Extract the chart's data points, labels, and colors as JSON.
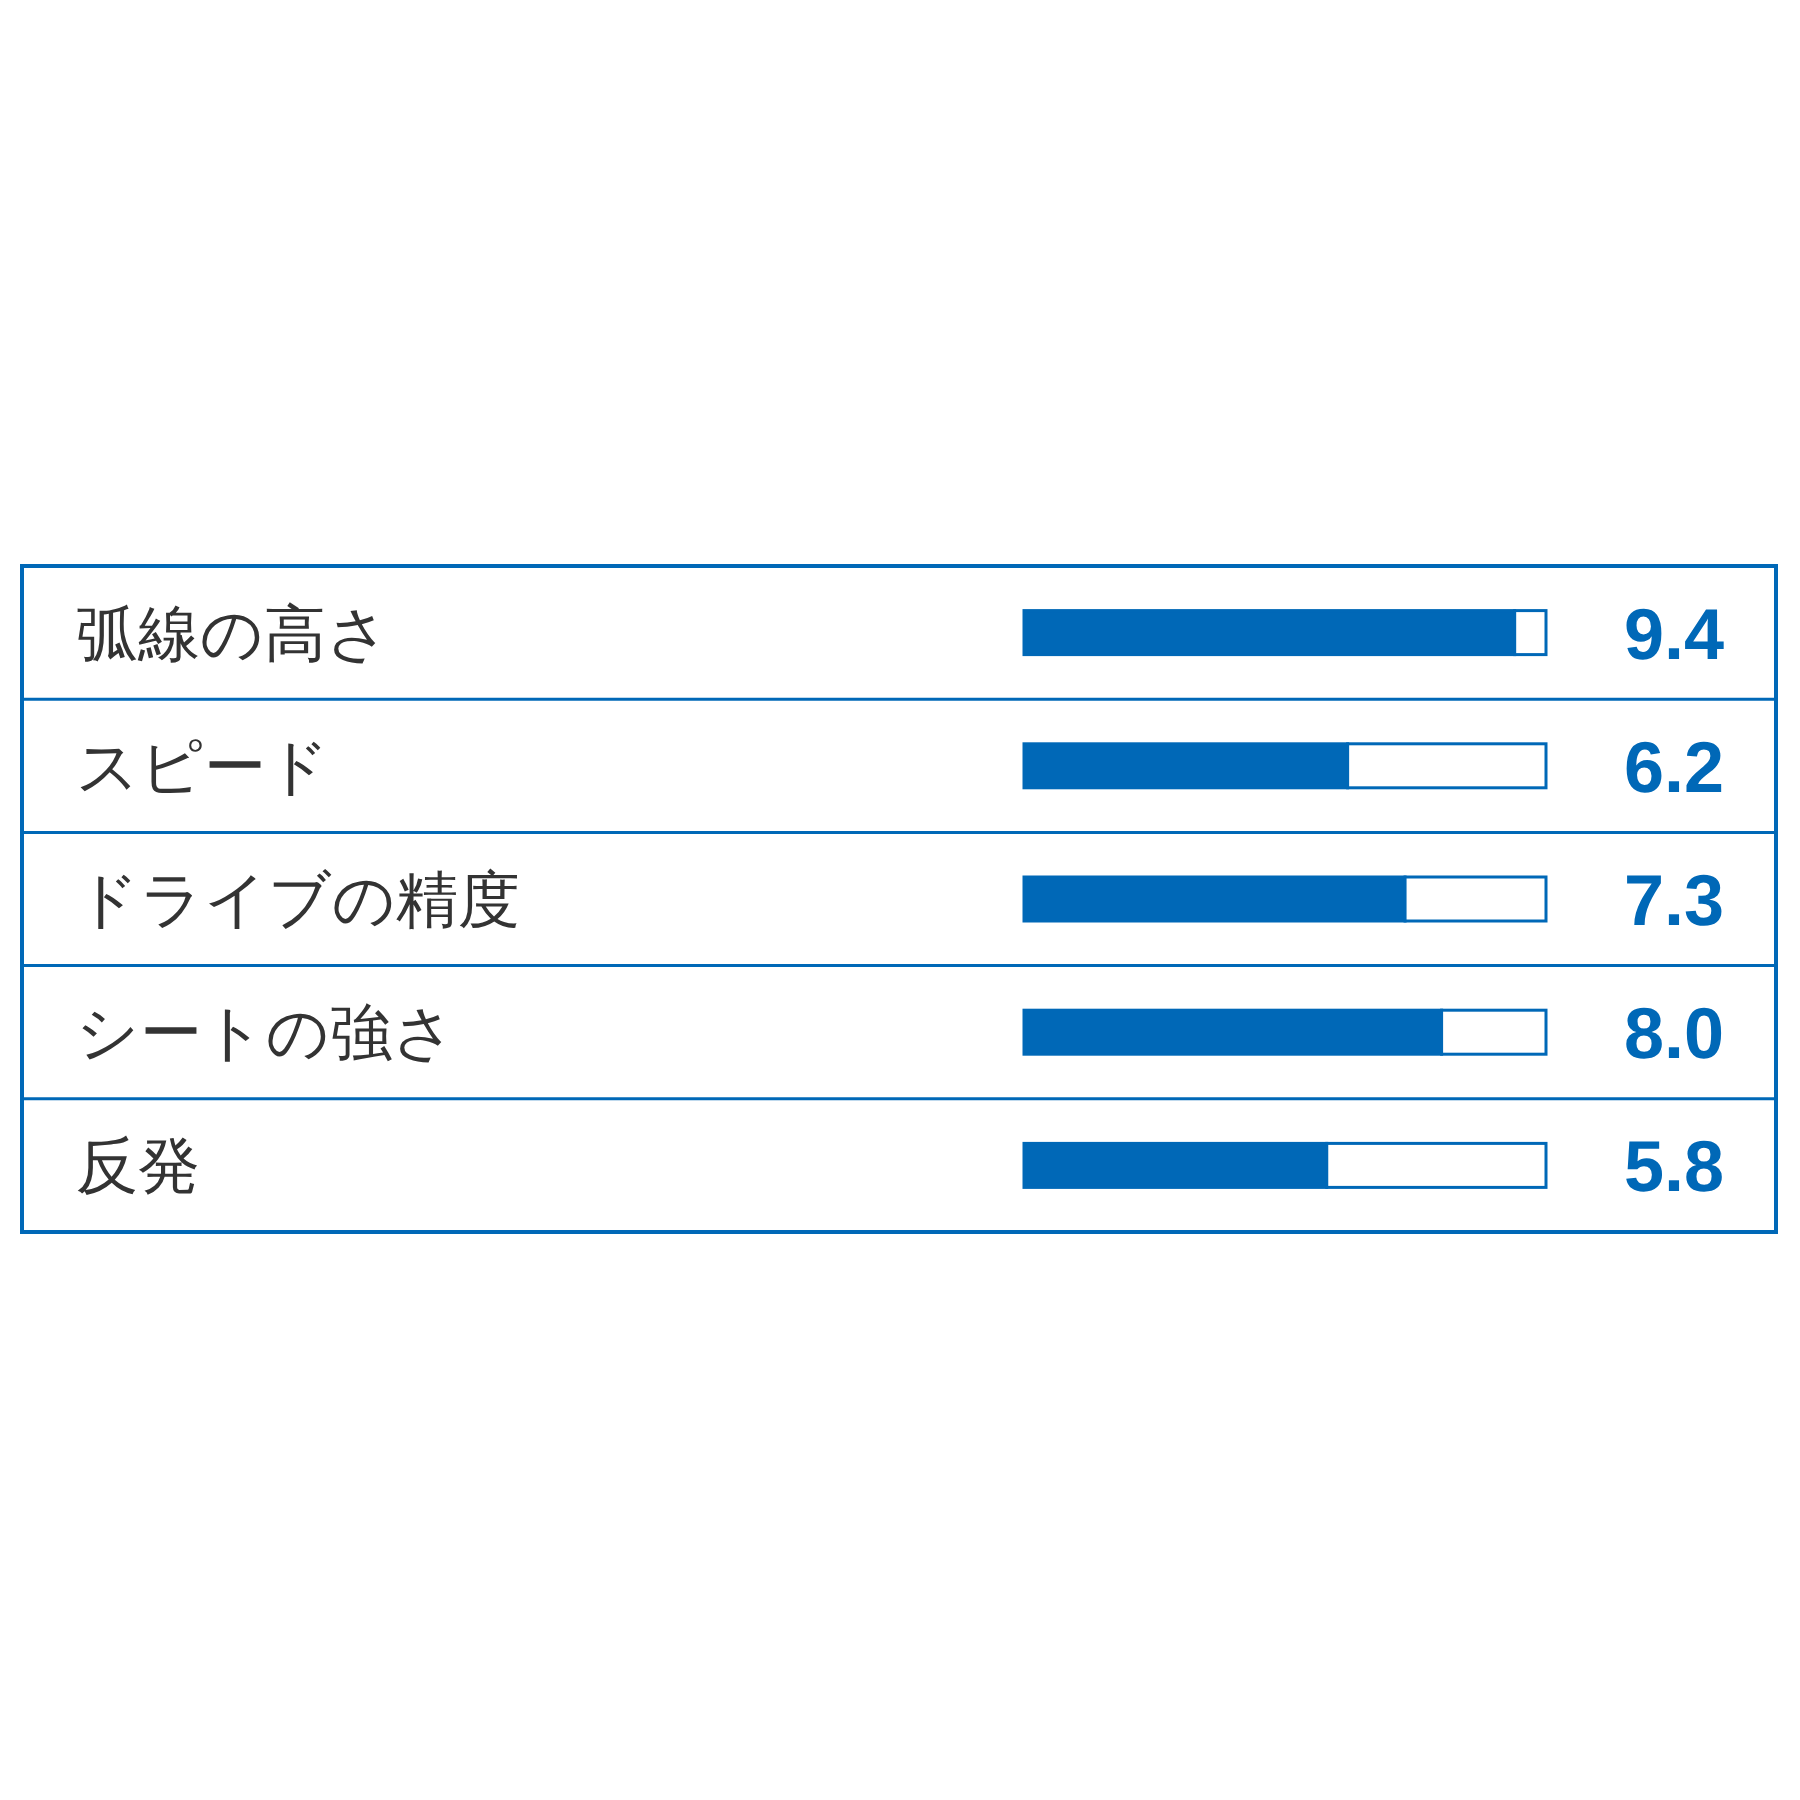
{
  "chart_data": {
    "type": "bar",
    "orientation": "horizontal",
    "stacked": true,
    "categories": [
      "弧線の高さ",
      "スピード",
      "ドライブの精度",
      "シートの強さ",
      "反発"
    ],
    "series": [
      {
        "color": "#0068b7",
        "values": [
          9.4,
          6.2,
          7.3,
          8.0,
          5.8
        ],
        "value_labels": [
          "9.4",
          "6.2",
          "7.3",
          "8.0",
          "5.8"
        ]
      },
      {
        "color": "#ffffff",
        "values": [
          0.6,
          3.8,
          2.7,
          2.0,
          4.2
        ]
      }
    ],
    "xlim": [
      0,
      10
    ],
    "tick_labels": "y"
  }
}
